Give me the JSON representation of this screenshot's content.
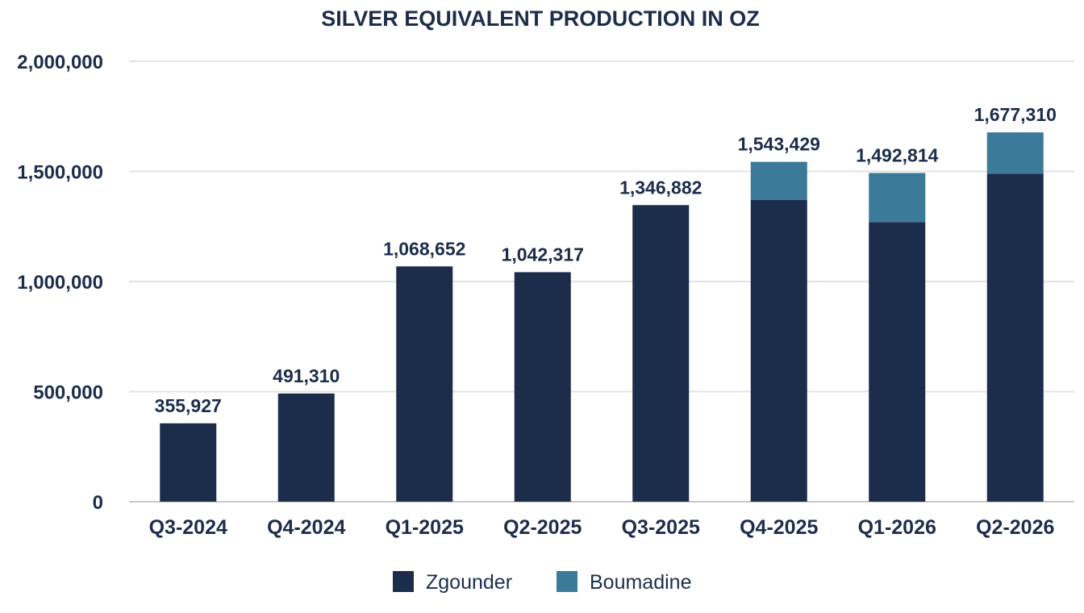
{
  "chart_data": {
    "type": "bar",
    "stacked": true,
    "title": "SILVER EQUIVALENT PRODUCTION IN OZ",
    "xlabel": "",
    "ylabel": "",
    "categories": [
      "Q3-2024",
      "Q4-2024",
      "Q1-2025",
      "Q2-2025",
      "Q3-2025",
      "Q4-2025",
      "Q1-2026",
      "Q2-2026"
    ],
    "series": [
      {
        "name": "Zgounder",
        "color": "#1c2d4c",
        "values": [
          355927,
          491310,
          1068652,
          1042317,
          1346882,
          1370000,
          1270000,
          1490000
        ]
      },
      {
        "name": "Boumadine",
        "color": "#3c7a9a",
        "values": [
          0,
          0,
          0,
          0,
          0,
          173429,
          222814,
          187310
        ]
      }
    ],
    "totals": [
      355927,
      491310,
      1068652,
      1042317,
      1346882,
      1543429,
      1492814,
      1677310
    ],
    "total_labels": [
      "355,927",
      "491,310",
      "1,068,652",
      "1,042,317",
      "1,346,882",
      "1,543,429",
      "1,492,814",
      "1,677,310"
    ],
    "yticks": [
      0,
      500000,
      1000000,
      1500000,
      2000000
    ],
    "ytick_labels": [
      "0",
      "500,000",
      "1,000,000",
      "1,500,000",
      "2,000,000"
    ],
    "ylim": [
      0,
      2000000
    ],
    "grid": true,
    "legend_position": "bottom-center"
  }
}
